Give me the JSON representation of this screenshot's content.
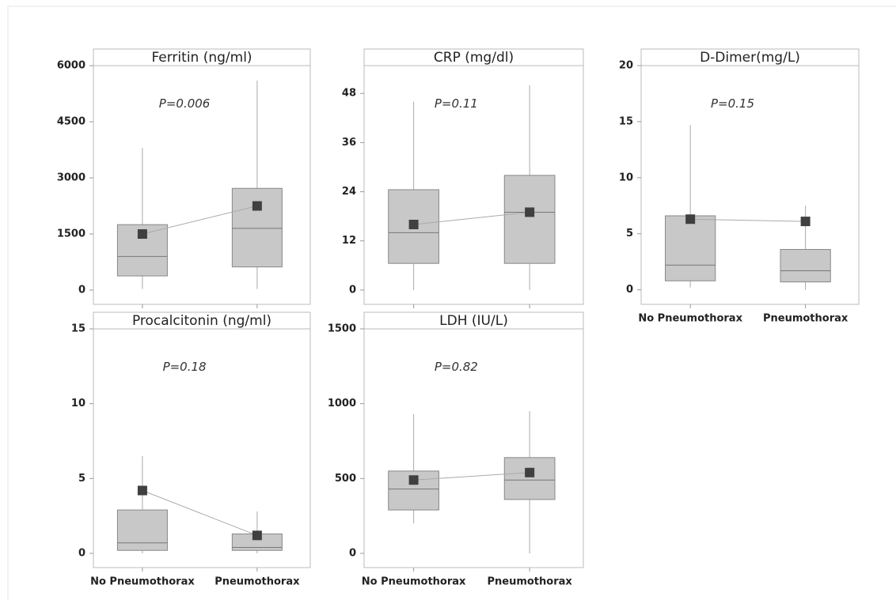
{
  "chart_data": [
    {
      "type": "box",
      "title": "Ferritin (ng/ml)",
      "annotation": "P=0.006",
      "categories": [
        null,
        null
      ],
      "ylim": [
        -380,
        6000
      ],
      "yticks": [
        0,
        1500,
        3000,
        4500,
        6000
      ],
      "color": "#c8c8c8",
      "mean_color": "#404040",
      "boxes": [
        {
          "min": 30,
          "q1": 380,
          "median": 900,
          "q3": 1750,
          "max": 3800,
          "mean": 1500
        },
        {
          "min": 30,
          "q1": 620,
          "median": 1650,
          "q3": 2720,
          "max": 5600,
          "mean": 2250
        }
      ]
    },
    {
      "type": "box",
      "title": "CRP (mg/dl)",
      "annotation": "P=0.11",
      "categories": [
        null,
        null
      ],
      "ylim": [
        -3.5,
        54.8
      ],
      "yticks": [
        0,
        12,
        24,
        36,
        48
      ],
      "color": "#c8c8c8",
      "mean_color": "#404040",
      "boxes": [
        {
          "min": 0,
          "q1": 6.5,
          "median": 14,
          "q3": 24.5,
          "max": 46,
          "mean": 16
        },
        {
          "min": 0,
          "q1": 6.5,
          "median": 19,
          "q3": 28,
          "max": 50,
          "mean": 19
        }
      ]
    },
    {
      "type": "box",
      "title": "D-Dimer(mg/L)",
      "annotation": "P=0.15",
      "categories": [
        "No Pneumothorax",
        "Pneumothorax"
      ],
      "ylim": [
        -1.3,
        20
      ],
      "yticks": [
        0,
        5,
        10,
        15,
        20
      ],
      "color": "#c8c8c8",
      "mean_color": "#404040",
      "boxes": [
        {
          "min": 0.2,
          "q1": 0.8,
          "median": 2.2,
          "q3": 6.6,
          "max": 14.7,
          "mean": 6.3
        },
        {
          "min": 0,
          "q1": 0.7,
          "median": 1.7,
          "q3": 3.6,
          "max": 7.5,
          "mean": 6.1
        }
      ]
    },
    {
      "type": "box",
      "title": "Procalcitonin (ng/ml)",
      "annotation": "P=0.18",
      "categories": [
        "No Pneumothorax",
        "Pneumothorax"
      ],
      "ylim": [
        -0.95,
        15
      ],
      "yticks": [
        0,
        5,
        10,
        15
      ],
      "color": "#c8c8c8",
      "mean_color": "#404040",
      "boxes": [
        {
          "min": 0,
          "q1": 0.2,
          "median": 0.7,
          "q3": 2.9,
          "max": 6.5,
          "mean": 4.2
        },
        {
          "min": 0,
          "q1": 0.2,
          "median": 0.4,
          "q3": 1.3,
          "max": 2.8,
          "mean": 1.2
        }
      ]
    },
    {
      "type": "box",
      "title": "LDH (IU/L)",
      "annotation": "P=0.82",
      "categories": [
        "No Pneumothorax",
        "Pneumothorax"
      ],
      "ylim": [
        -95,
        1500
      ],
      "yticks": [
        0,
        500,
        1000,
        1500
      ],
      "color": "#c8c8c8",
      "mean_color": "#404040",
      "boxes": [
        {
          "min": 200,
          "q1": 290,
          "median": 430,
          "q3": 550,
          "max": 930,
          "mean": 490
        },
        {
          "min": 0,
          "q1": 360,
          "median": 490,
          "q3": 640,
          "max": 950,
          "mean": 540
        }
      ]
    }
  ]
}
